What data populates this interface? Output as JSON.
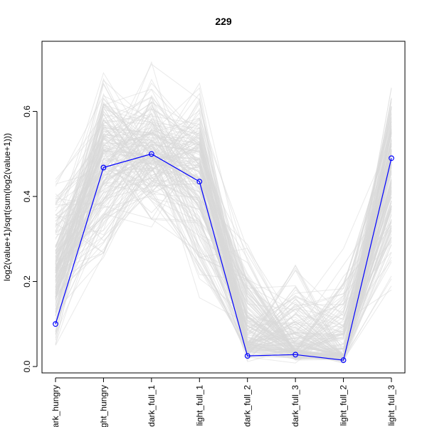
{
  "chart_data": {
    "type": "line",
    "title": "229",
    "xlabel": "",
    "ylabel": "log2(value+1)/sqrt(sum(log2(value+1)))",
    "categories": [
      "dark_hungry",
      "light_hungry",
      "dark_full_1",
      "light_full_1",
      "dark_full_2",
      "dark_full_3",
      "light_full_2",
      "light_full_3"
    ],
    "ylim": [
      -0.015,
      0.765
    ],
    "y_ticks": [
      0.0,
      0.2,
      0.4,
      0.6
    ],
    "y_tick_labels": [
      "0.0",
      "0.2",
      "0.4",
      "0.6"
    ],
    "series": [
      {
        "values": [
          0.1,
          0.468,
          0.5,
          0.435,
          0.025,
          0.028,
          0.015,
          0.49
        ]
      }
    ],
    "background_band": {
      "note_colors": "light grey profiles from other members of the cluster",
      "count": 180,
      "low": [
        0.0,
        0.17,
        0.29,
        0.12,
        0.0,
        0.0,
        0.0,
        0.12
      ],
      "mid": [
        0.22,
        0.5,
        0.5,
        0.45,
        0.06,
        0.04,
        0.03,
        0.47
      ],
      "high": [
        0.5,
        0.72,
        0.755,
        0.72,
        0.33,
        0.32,
        0.33,
        0.72
      ]
    },
    "colors": {
      "highlight": "#0000ff",
      "background": "#d9d9d9",
      "axis": "#000000"
    },
    "legend": "none",
    "grid": false
  }
}
